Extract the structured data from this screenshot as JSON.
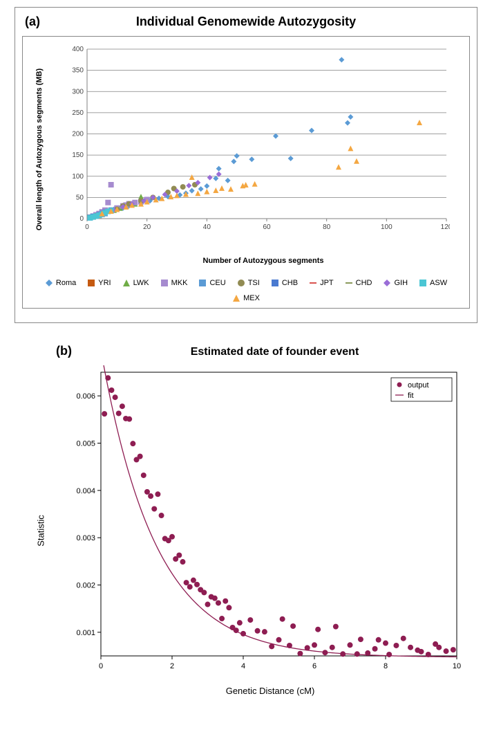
{
  "panelA": {
    "label": "(a)",
    "title": "Individual  Genomewide Autozygosity",
    "type": "scatter",
    "xlabel": "Number of Autozygous segments",
    "ylabel": "Overall length of Autozygous segments (MB)",
    "xlim": [
      0,
      120
    ],
    "ylim": [
      0,
      400
    ],
    "xtick_step": 20,
    "ytick_step": 50,
    "plot_bg": "#ffffff",
    "grid_color": "#808080",
    "series": {
      "Roma": {
        "label": "Roma",
        "marker": "diamond",
        "color": "#5b9bd5",
        "points": [
          [
            2,
            5
          ],
          [
            3,
            8
          ],
          [
            5,
            12
          ],
          [
            6,
            15
          ],
          [
            9,
            22
          ],
          [
            12,
            25
          ],
          [
            14,
            30
          ],
          [
            18,
            35
          ],
          [
            21,
            42
          ],
          [
            24,
            48
          ],
          [
            27,
            52
          ],
          [
            31,
            56
          ],
          [
            33,
            60
          ],
          [
            35,
            66
          ],
          [
            38,
            70
          ],
          [
            40,
            77
          ],
          [
            43,
            95
          ],
          [
            44,
            118
          ],
          [
            47,
            90
          ],
          [
            49,
            135
          ],
          [
            50,
            148
          ],
          [
            55,
            140
          ],
          [
            63,
            195
          ],
          [
            68,
            142
          ],
          [
            75,
            208
          ],
          [
            85,
            375
          ],
          [
            87,
            226
          ],
          [
            88,
            240
          ]
        ]
      },
      "YRI": {
        "label": "YRI",
        "marker": "square",
        "color": "#c55a11",
        "points": [
          [
            1,
            3
          ],
          [
            2,
            4
          ],
          [
            3,
            7
          ],
          [
            4,
            8
          ],
          [
            5,
            11
          ],
          [
            6,
            14
          ]
        ]
      },
      "LWK": {
        "label": "LWK",
        "marker": "triangle",
        "color": "#70ad47",
        "points": [
          [
            2,
            5
          ],
          [
            3,
            8
          ],
          [
            4,
            10
          ],
          [
            6,
            14
          ],
          [
            8,
            18
          ],
          [
            9,
            20
          ],
          [
            11,
            25
          ],
          [
            13,
            30
          ],
          [
            16,
            35
          ],
          [
            18,
            52
          ]
        ]
      },
      "MKK": {
        "label": "MKK",
        "marker": "square",
        "color": "#a68bcf",
        "points": [
          [
            2,
            6
          ],
          [
            3,
            9
          ],
          [
            4,
            12
          ],
          [
            5,
            16
          ],
          [
            6,
            20
          ],
          [
            7,
            38
          ],
          [
            8,
            80
          ],
          [
            10,
            25
          ],
          [
            12,
            30
          ],
          [
            13,
            32
          ],
          [
            14,
            35
          ],
          [
            16,
            38
          ],
          [
            18,
            40
          ],
          [
            20,
            45
          ]
        ]
      },
      "CEU": {
        "label": "CEU",
        "marker": "square",
        "color": "#5b9bd5",
        "points": [
          [
            1,
            2
          ],
          [
            2,
            4
          ],
          [
            3,
            6
          ],
          [
            4,
            8
          ],
          [
            5,
            10
          ],
          [
            6,
            12
          ]
        ]
      },
      "TSI": {
        "label": "TSI",
        "marker": "circle",
        "color": "#918b53",
        "points": [
          [
            3,
            7
          ],
          [
            5,
            12
          ],
          [
            8,
            18
          ],
          [
            10,
            22
          ],
          [
            12,
            30
          ],
          [
            14,
            35
          ],
          [
            18,
            42
          ],
          [
            22,
            50
          ],
          [
            27,
            62
          ],
          [
            29,
            71
          ],
          [
            32,
            75
          ],
          [
            36,
            80
          ]
        ]
      },
      "CHB": {
        "label": "CHB",
        "marker": "square",
        "color": "#4a7ad0",
        "points": [
          [
            1,
            3
          ],
          [
            2,
            5
          ],
          [
            4,
            9
          ],
          [
            5,
            12
          ],
          [
            6,
            15
          ],
          [
            8,
            20
          ]
        ]
      },
      "JPT": {
        "label": "JPT",
        "marker": "dash",
        "color": "#d9534f",
        "points": [
          [
            1,
            2
          ],
          [
            2,
            4
          ],
          [
            3,
            6
          ],
          [
            4,
            8
          ],
          [
            5,
            11
          ]
        ]
      },
      "CHD": {
        "label": "CHD",
        "marker": "dash",
        "color": "#8a9a5b",
        "points": [
          [
            2,
            4
          ],
          [
            3,
            6
          ],
          [
            5,
            12
          ],
          [
            7,
            17
          ],
          [
            9,
            20
          ]
        ]
      },
      "GIH": {
        "label": "GIH",
        "marker": "diamond",
        "color": "#9a6dd7",
        "points": [
          [
            3,
            7
          ],
          [
            6,
            14
          ],
          [
            9,
            20
          ],
          [
            12,
            28
          ],
          [
            15,
            35
          ],
          [
            19,
            42
          ],
          [
            22,
            50
          ],
          [
            26,
            57
          ],
          [
            30,
            65
          ],
          [
            34,
            78
          ],
          [
            37,
            85
          ],
          [
            41,
            97
          ],
          [
            44,
            105
          ]
        ]
      },
      "ASW": {
        "label": "ASW",
        "marker": "square",
        "color": "#4bc6d4",
        "points": [
          [
            1,
            2
          ],
          [
            2,
            4
          ],
          [
            3,
            6
          ],
          [
            4,
            8
          ],
          [
            5,
            11
          ],
          [
            6,
            14
          ],
          [
            7,
            17
          ],
          [
            8,
            19
          ]
        ]
      },
      "MEX": {
        "label": "MEX",
        "marker": "triangle",
        "color": "#f4a742",
        "points": [
          [
            5,
            12
          ],
          [
            8,
            18
          ],
          [
            10,
            22
          ],
          [
            13,
            28
          ],
          [
            15,
            32
          ],
          [
            18,
            35
          ],
          [
            20,
            40
          ],
          [
            23,
            45
          ],
          [
            25,
            48
          ],
          [
            28,
            52
          ],
          [
            30,
            55
          ],
          [
            33,
            58
          ],
          [
            35,
            98
          ],
          [
            37,
            60
          ],
          [
            40,
            64
          ],
          [
            43,
            67
          ],
          [
            45,
            72
          ],
          [
            48,
            70
          ],
          [
            52,
            78
          ],
          [
            53,
            80
          ],
          [
            56,
            82
          ],
          [
            84,
            122
          ],
          [
            88,
            166
          ],
          [
            90,
            136
          ],
          [
            111,
            227
          ]
        ]
      }
    },
    "legend_order": [
      "Roma",
      "YRI",
      "LWK",
      "MKK",
      "CEU",
      "TSI",
      "CHB",
      "JPT",
      "CHD",
      "GIH",
      "ASW",
      "MEX"
    ]
  },
  "panelB": {
    "label": "(b)",
    "title": "Estimated date of founder event",
    "type": "scatter+line",
    "xlabel": "Genetic Distance (cM)",
    "ylabel": "Statistic",
    "xlim": [
      0,
      10
    ],
    "ylim": [
      0.0005,
      0.0065
    ],
    "xtick_step": 2,
    "yticks": [
      0.001,
      0.002,
      0.003,
      0.004,
      0.005,
      0.006
    ],
    "plot_bg": "#ffffff",
    "border_color": "#000000",
    "point_color": "#8e1d52",
    "line_color": "#8e1d52",
    "point_radius": 4,
    "legend": {
      "output": "output",
      "fit": "fit"
    },
    "points": [
      [
        0.1,
        0.00562
      ],
      [
        0.2,
        0.00638
      ],
      [
        0.3,
        0.00612
      ],
      [
        0.4,
        0.00597
      ],
      [
        0.5,
        0.00563
      ],
      [
        0.6,
        0.00578
      ],
      [
        0.7,
        0.00552
      ],
      [
        0.8,
        0.00551
      ],
      [
        0.9,
        0.00499
      ],
      [
        1.0,
        0.00465
      ],
      [
        1.1,
        0.00472
      ],
      [
        1.2,
        0.00432
      ],
      [
        1.3,
        0.00397
      ],
      [
        1.4,
        0.00388
      ],
      [
        1.5,
        0.00361
      ],
      [
        1.6,
        0.00392
      ],
      [
        1.7,
        0.00347
      ],
      [
        1.8,
        0.00298
      ],
      [
        1.9,
        0.00294
      ],
      [
        2.0,
        0.00302
      ],
      [
        2.1,
        0.00255
      ],
      [
        2.2,
        0.00263
      ],
      [
        2.3,
        0.00249
      ],
      [
        2.4,
        0.00205
      ],
      [
        2.5,
        0.00196
      ],
      [
        2.6,
        0.0021
      ],
      [
        2.7,
        0.00201
      ],
      [
        2.8,
        0.0019
      ],
      [
        2.9,
        0.00184
      ],
      [
        3.0,
        0.00159
      ],
      [
        3.1,
        0.00175
      ],
      [
        3.2,
        0.00172
      ],
      [
        3.3,
        0.00162
      ],
      [
        3.4,
        0.00129
      ],
      [
        3.5,
        0.00166
      ],
      [
        3.6,
        0.00152
      ],
      [
        3.7,
        0.0011
      ],
      [
        3.8,
        0.00104
      ],
      [
        3.9,
        0.0012
      ],
      [
        4.0,
        0.00097
      ],
      [
        4.2,
        0.00126
      ],
      [
        4.4,
        0.00103
      ],
      [
        4.6,
        0.00101
      ],
      [
        4.8,
        0.0007
      ],
      [
        5.0,
        0.00084
      ],
      [
        5.1,
        0.00128
      ],
      [
        5.3,
        0.00072
      ],
      [
        5.4,
        0.00113
      ],
      [
        5.6,
        0.00055
      ],
      [
        5.8,
        0.00067
      ],
      [
        6.0,
        0.00073
      ],
      [
        6.1,
        0.00106
      ],
      [
        6.3,
        0.00057
      ],
      [
        6.5,
        0.00068
      ],
      [
        6.6,
        0.00112
      ],
      [
        6.8,
        0.00054
      ],
      [
        7.0,
        0.00073
      ],
      [
        7.2,
        0.00054
      ],
      [
        7.3,
        0.00085
      ],
      [
        7.5,
        0.00056
      ],
      [
        7.7,
        0.00065
      ],
      [
        7.8,
        0.00084
      ],
      [
        8.0,
        0.00077
      ],
      [
        8.1,
        0.00053
      ],
      [
        8.3,
        0.00072
      ],
      [
        8.5,
        0.00087
      ],
      [
        8.7,
        0.00068
      ],
      [
        8.9,
        0.00062
      ],
      [
        9.0,
        0.00059
      ],
      [
        9.2,
        0.00053
      ],
      [
        9.4,
        0.00075
      ],
      [
        9.5,
        0.00068
      ],
      [
        9.7,
        0.0006
      ],
      [
        9.9,
        0.00063
      ]
    ],
    "fit": {
      "A": 0.0065,
      "k": 0.65,
      "C": 0.00047
    }
  }
}
